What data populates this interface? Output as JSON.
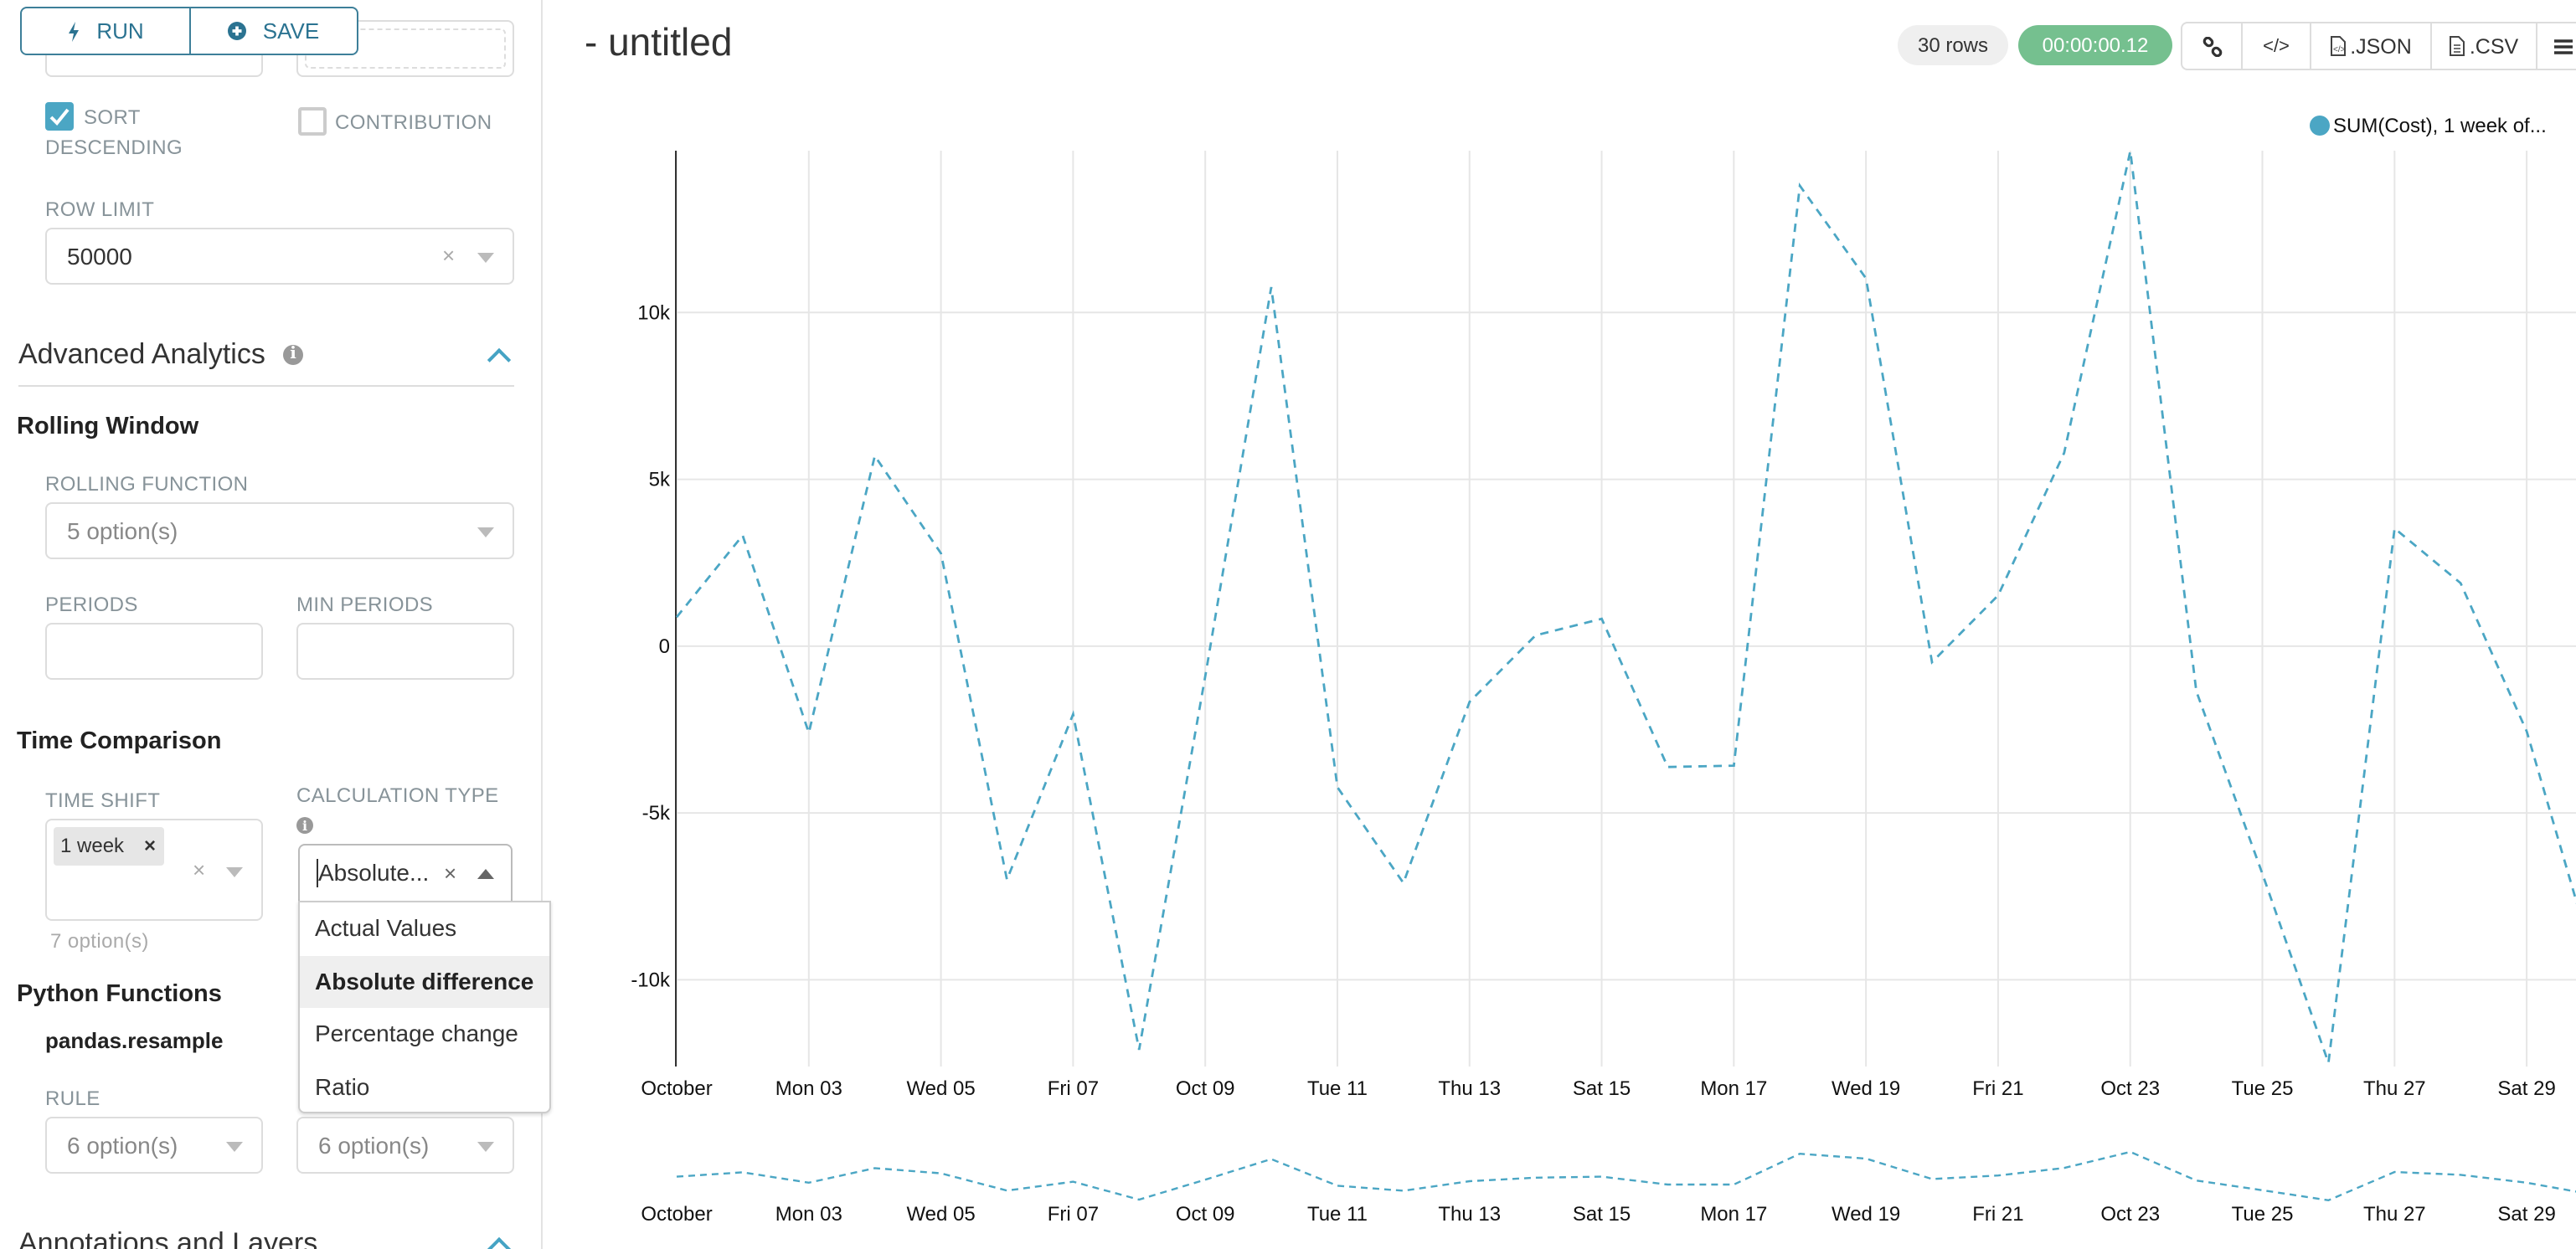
{
  "toolbar": {
    "run_label": "RUN",
    "save_label": "SAVE",
    "run_icon": "bolt-icon",
    "save_icon": "plus-circle-icon"
  },
  "query": {
    "sort_descending": {
      "label_line1": "SORT",
      "label_line2": "DESCENDING",
      "checked": true
    },
    "contribution": {
      "label": "CONTRIBUTION",
      "checked": false
    },
    "row_limit": {
      "label": "ROW LIMIT",
      "value": "50000"
    }
  },
  "advanced_analytics": {
    "title": "Advanced Analytics",
    "rolling_window": {
      "title": "Rolling Window",
      "rolling_function": {
        "label": "ROLLING FUNCTION",
        "placeholder": "5 option(s)"
      },
      "periods": {
        "label": "PERIODS",
        "value": ""
      },
      "min_periods": {
        "label": "MIN PERIODS",
        "value": ""
      }
    },
    "time_comparison": {
      "title": "Time Comparison",
      "time_shift": {
        "label": "TIME SHIFT",
        "tags": [
          "1 week"
        ],
        "hint": "7 option(s)"
      },
      "calculation_type": {
        "label": "CALCULATION TYPE",
        "value": "Absolute...",
        "options": [
          "Actual Values",
          "Absolute difference",
          "Percentage change",
          "Ratio"
        ],
        "highlighted": "Absolute difference"
      }
    },
    "python_functions": {
      "title": "Python Functions",
      "subtitle": "pandas.resample",
      "rule": {
        "label": "RULE",
        "placeholder": "6 option(s)"
      },
      "method": {
        "placeholder": "6 option(s)"
      }
    }
  },
  "annotations": {
    "title": "Annotations and Layers"
  },
  "header": {
    "title": "- untitled",
    "row_count": "30 rows",
    "timer": "00:00:00.12",
    "actions": [
      {
        "icon": "link-icon",
        "label": ""
      },
      {
        "icon": "code-icon",
        "label": ""
      },
      {
        "icon": "json-file-icon",
        "label": ".JSON"
      },
      {
        "icon": "csv-file-icon",
        "label": ".CSV"
      },
      {
        "icon": "menu-icon",
        "label": ""
      }
    ]
  },
  "colors": {
    "accent": "#2b7391",
    "series": "#4ba6c4",
    "timer_bg": "#75c08f",
    "checkbox": "#4ba6c4"
  },
  "chart_data": {
    "type": "line",
    "line_style": "dashed",
    "title": "",
    "xlabel": "",
    "ylabel": "",
    "legend": {
      "entries": [
        "SUM(Cost), 1 week of..."
      ],
      "placement": "top-right"
    },
    "grid": true,
    "x": [
      "Oct 01",
      "Oct 02",
      "Oct 03",
      "Oct 04",
      "Oct 05",
      "Oct 06",
      "Oct 07",
      "Oct 08",
      "Oct 09",
      "Oct 10",
      "Oct 11",
      "Oct 12",
      "Oct 13",
      "Oct 14",
      "Oct 15",
      "Oct 16",
      "Oct 17",
      "Oct 18",
      "Oct 19",
      "Oct 20",
      "Oct 21",
      "Oct 22",
      "Oct 23",
      "Oct 24",
      "Oct 25",
      "Oct 26",
      "Oct 27",
      "Oct 28",
      "Oct 29",
      "Oct 30"
    ],
    "x_tick_labels": [
      "October",
      "Mon 03",
      "Wed 05",
      "Fri 07",
      "Oct 09",
      "Tue 11",
      "Thu 13",
      "Sat 15",
      "Mon 17",
      "Wed 19",
      "Fri 21",
      "Oct 23",
      "Tue 25",
      "Thu 27",
      "Sat 29"
    ],
    "y_ticks": [
      10000,
      5000,
      0,
      -5000,
      -10000
    ],
    "y_tick_labels": [
      "10k",
      "5k",
      "0",
      "-5k",
      "-10k"
    ],
    "ylim": [
      -12600,
      14850
    ],
    "series": [
      {
        "name": "SUM(Cost), 1 week of...",
        "values": [
          870,
          3320,
          -2600,
          5700,
          2780,
          -7000,
          -2040,
          -12100,
          -900,
          10760,
          -4230,
          -7100,
          -1670,
          320,
          820,
          -3620,
          -3580,
          13800,
          11020,
          -480,
          1520,
          5790,
          14840,
          -1350,
          -6830,
          -12490,
          3530,
          1890,
          -2560,
          -9330
        ]
      }
    ],
    "brush": {
      "enabled": true
    }
  }
}
